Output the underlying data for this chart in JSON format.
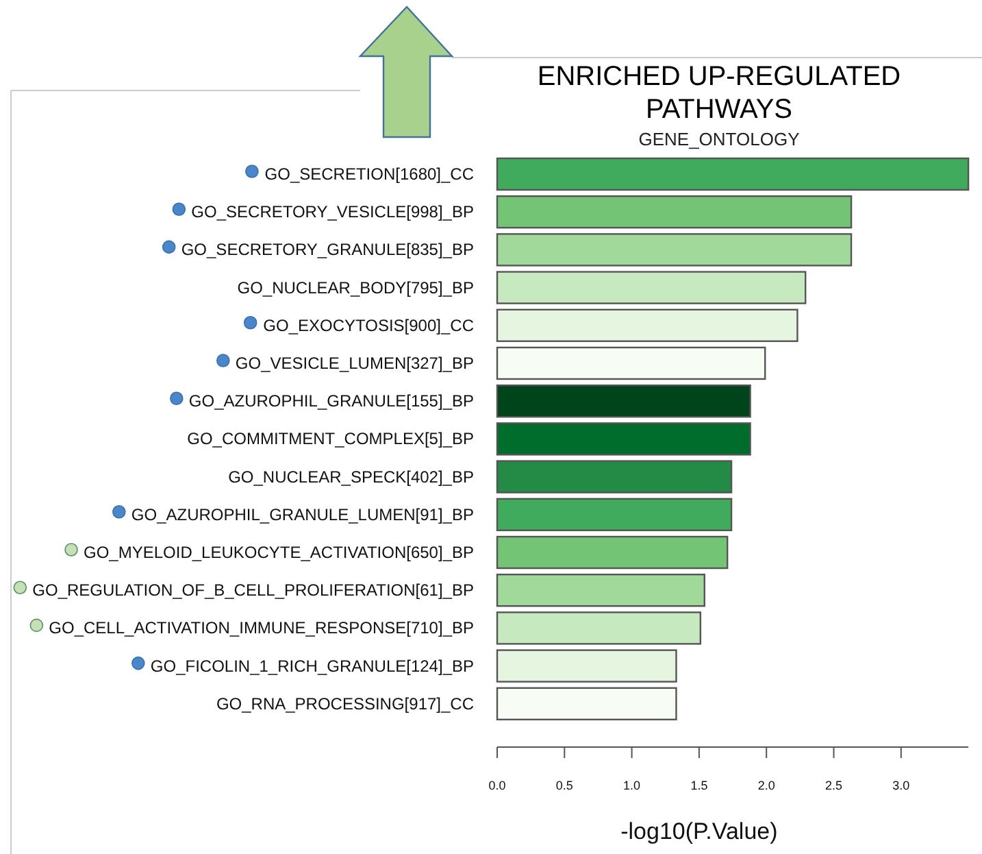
{
  "chart_data": {
    "type": "bar",
    "orientation": "horizontal",
    "title": "ENRICHED UP-REGULATED PATHWAYS",
    "subtitle": "GENE_ONTOLOGY",
    "xlabel": "-log10(P.Value)",
    "categories": [
      "GO_SECRETION[1680]_CC",
      "GO_SECRETORY_VESICLE[998]_BP",
      "GO_SECRETORY_GRANULE[835]_BP",
      "GO_NUCLEAR_BODY[795]_BP",
      "GO_EXOCYTOSIS[900]_CC",
      "GO_VESICLE_LUMEN[327]_BP",
      "GO_AZUROPHIL_GRANULE[155]_BP",
      "GO_COMMITMENT_COMPLEX[5]_BP",
      "GO_NUCLEAR_SPECK[402]_BP",
      "GO_AZUROPHIL_GRANULE_LUMEN[91]_BP",
      "GO_MYELOID_LEUKOCYTE_ACTIVATION[650]_BP",
      "GO_REGULATION_OF_B_CELL_PROLIFERATION[61]_BP",
      "GO_CELL_ACTIVATION_IMMUNE_RESPONSE[710]_BP",
      "GO_FICOLIN_1_RICH_GRANULE[124]_BP",
      "GO_RNA_PROCESSING[917]_CC"
    ],
    "values": [
      3.5,
      2.63,
      2.63,
      2.29,
      2.23,
      1.99,
      1.88,
      1.88,
      1.74,
      1.74,
      1.71,
      1.54,
      1.51,
      1.33,
      1.33
    ],
    "colors": [
      "#41ab5d",
      "#74c476",
      "#a1d99b",
      "#c7e9c0",
      "#e5f5e0",
      "#f7fcf5",
      "#00441b",
      "#006d2c",
      "#238b45",
      "#41ab5d",
      "#74c476",
      "#a1d99b",
      "#c7e9c0",
      "#e5f5e0",
      "#f7fcf5"
    ],
    "xlim": [
      0,
      3.5
    ],
    "xticks": [
      {
        "value": 0,
        "label": "0.0"
      },
      {
        "value": 0.5,
        "label": "0.5"
      },
      {
        "value": 1,
        "label": "1.0"
      },
      {
        "value": 1.5,
        "label": "1.5"
      },
      {
        "value": 2,
        "label": "2.0"
      },
      {
        "value": 2.5,
        "label": "2.5"
      },
      {
        "value": 3,
        "label": "3.0"
      }
    ],
    "grid": false
  }
}
